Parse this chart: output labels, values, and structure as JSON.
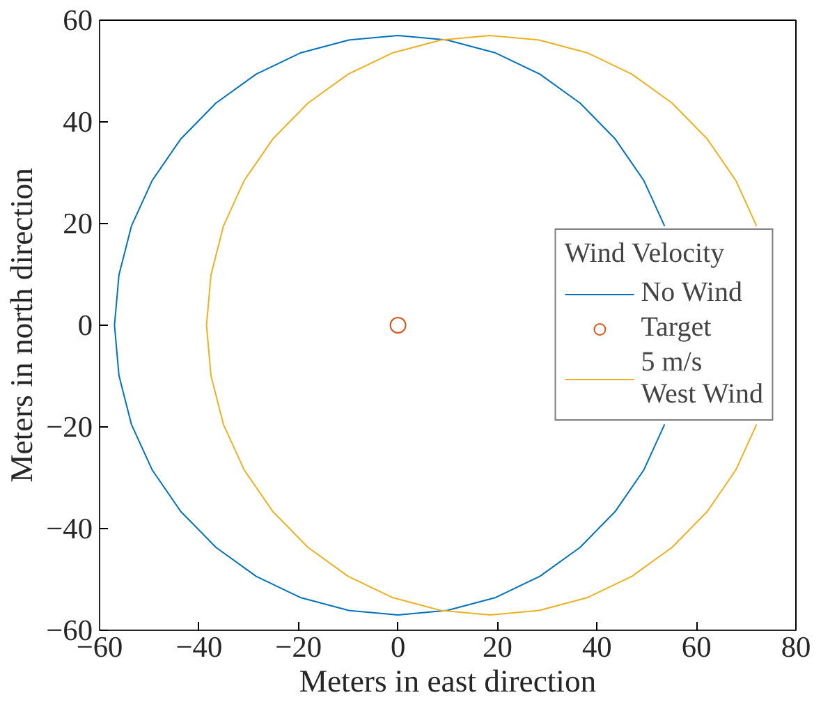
{
  "chart_data": {
    "type": "line",
    "xlabel": "Meters in east direction",
    "ylabel": "Meters in north direction",
    "legend_title": "Wind Velocity",
    "legend": "right",
    "grid": false,
    "xlim": [
      -60,
      80
    ],
    "ylim": [
      -60,
      60
    ],
    "xticks": [
      -60,
      -40,
      -20,
      0,
      20,
      40,
      60,
      80
    ],
    "yticks": [
      -60,
      -40,
      -20,
      0,
      20,
      40,
      60
    ],
    "series": [
      {
        "name": "No Wind",
        "type": "line",
        "color": "#0072bd",
        "x": [
          53.6,
          49.4,
          43.7,
          36.6,
          28.5,
          19.5,
          9.9,
          0,
          -9.9,
          -19.5,
          -28.5,
          -36.6,
          -43.7,
          -49.4,
          -53.6,
          -56.1,
          -57,
          -56.1,
          -53.6,
          -49.4,
          -43.7,
          -36.6,
          -28.5,
          -19.5,
          -9.9,
          0,
          9.9,
          19.5,
          28.5,
          36.6,
          43.7,
          49.4,
          53.6
        ],
        "values": [
          19.5,
          28.5,
          36.6,
          43.7,
          49.4,
          53.6,
          56.1,
          57,
          56.1,
          53.6,
          49.4,
          43.7,
          36.6,
          28.5,
          19.5,
          9.9,
          0,
          -9.9,
          -19.5,
          -28.5,
          -36.6,
          -43.7,
          -49.4,
          -53.6,
          -56.1,
          -57,
          -56.1,
          -53.6,
          -49.4,
          -43.7,
          -36.6,
          -28.5,
          -19.5
        ]
      },
      {
        "name": "Target",
        "type": "scatter",
        "marker": "circle",
        "color": "#d95319",
        "x": [
          0
        ],
        "values": [
          0
        ]
      },
      {
        "name": "5 m/s\nWest Wind",
        "color": "#edb120",
        "x": [
          72.1,
          67.9,
          62.2,
          55.1,
          47,
          38,
          28.4,
          18.5,
          8.6,
          -1,
          -10,
          -18.1,
          -25.2,
          -30.9,
          -35.1,
          -37.6,
          -38.5,
          -37.6,
          -35.1,
          -30.9,
          -25.2,
          -18.1,
          -10,
          -1,
          8.6,
          18.5,
          28.4,
          38,
          47,
          55.1,
          62.2,
          67.9,
          72.1
        ],
        "values": [
          19.5,
          28.5,
          36.6,
          43.7,
          49.4,
          53.6,
          56.1,
          57,
          56.1,
          53.6,
          49.4,
          43.7,
          36.6,
          28.5,
          19.5,
          9.9,
          0,
          -9.9,
          -19.5,
          -28.5,
          -36.6,
          -43.7,
          -49.4,
          -53.6,
          -56.1,
          -57,
          -56.1,
          -53.6,
          -49.4,
          -43.7,
          -36.6,
          -28.5,
          -19.5
        ]
      }
    ]
  }
}
